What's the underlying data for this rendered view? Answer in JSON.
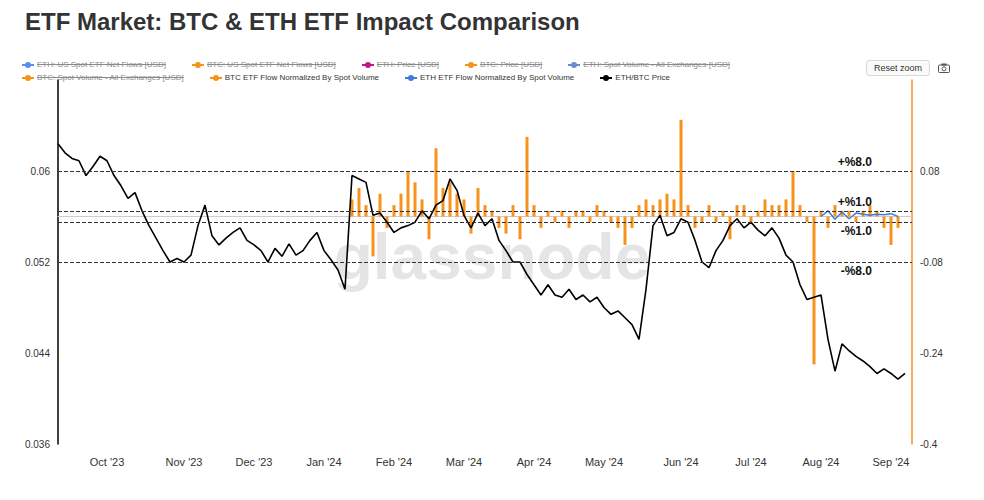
{
  "chart_data": {
    "type": "line",
    "title": "ETF Market: BTC & ETH ETF Impact Comparison",
    "watermark": "glassnode",
    "controls": [
      "Reset zoom"
    ],
    "legend": "top",
    "grid": false,
    "hidden_series": [
      {
        "name": "ETH: US Spot ETF Net Flows [USD]",
        "color": "#5b8def"
      },
      {
        "name": "BTC: US Spot ETF Net Flows [USD]",
        "color": "#f7931a"
      },
      {
        "name": "ETH: Price [USD]",
        "color": "#c0168c"
      },
      {
        "name": "BTC: Price [USD]",
        "color": "#f7931a"
      },
      {
        "name": "ETH: Spot Volume - All Exchanges [USD]",
        "color": "#6b8cce"
      },
      {
        "name": "BTC: Spot Volume - All Exchanges [USD]",
        "color": "#f7931a"
      }
    ],
    "categories": [
      null,
      null,
      null,
      null,
      null,
      null,
      null,
      "Oct '23",
      null,
      null,
      null,
      null,
      null,
      null,
      null,
      null,
      null,
      null,
      "Nov '23",
      null,
      null,
      null,
      null,
      null,
      null,
      null,
      null,
      null,
      "Dec '23",
      null,
      null,
      null,
      null,
      null,
      null,
      null,
      null,
      null,
      "Jan '24",
      null,
      null,
      null,
      null,
      null,
      null,
      null,
      null,
      null,
      "Feb '24",
      null,
      null,
      null,
      null,
      null,
      null,
      null,
      null,
      null,
      "Mar '24",
      null,
      null,
      null,
      null,
      null,
      null,
      null,
      null,
      null,
      "Apr '24",
      null,
      null,
      null,
      null,
      null,
      null,
      null,
      null,
      null,
      "May '24",
      null,
      null,
      null,
      null,
      null,
      null,
      null,
      null,
      null,
      null,
      "Jun '24",
      null,
      null,
      null,
      null,
      null,
      null,
      null,
      null,
      null,
      "Jul '24",
      null,
      null,
      null,
      null,
      null,
      null,
      null,
      null,
      null,
      "Aug '24",
      null,
      null,
      null,
      null,
      null,
      null,
      null,
      null,
      null,
      "Sep '24",
      null,
      null,
      null
    ],
    "ylim": [
      0.036,
      0.068
    ],
    "yticks": [
      0.036,
      0.044,
      0.052,
      0.06
    ],
    "y2lim": [
      -0.4,
      0.24
    ],
    "y2ticks": [
      -0.4,
      -0.24,
      -0.08,
      0.08
    ],
    "reference_lines": [
      {
        "value": 0.08,
        "label": "+%8.0"
      },
      {
        "value": 0.01,
        "label": "+%1.0"
      },
      {
        "value": -0.01,
        "label": "-%1.0"
      },
      {
        "value": -0.08,
        "label": "-%8.0"
      }
    ],
    "series": [
      {
        "name": "BTC ETF Flow Normalized By Spot Volume",
        "type": "bar",
        "color": "#f7931a",
        "axis": "y2",
        "values": [
          null,
          null,
          null,
          null,
          null,
          null,
          null,
          null,
          null,
          null,
          null,
          null,
          null,
          null,
          null,
          null,
          null,
          null,
          null,
          null,
          null,
          null,
          null,
          null,
          null,
          null,
          null,
          null,
          null,
          null,
          null,
          null,
          null,
          null,
          null,
          null,
          null,
          null,
          null,
          null,
          null,
          null,
          0.03,
          0.05,
          0.02,
          -0.07,
          0.04,
          -0.02,
          0.02,
          0.04,
          0.08,
          0.06,
          0.03,
          -0.04,
          0.12,
          0.05,
          0.06,
          0.04,
          0.03,
          -0.03,
          0.05,
          0.02,
          0.01,
          -0.02,
          -0.03,
          0.02,
          -0.04,
          0.14,
          0.02,
          -0.02,
          0.01,
          -0.01,
          0.01,
          -0.02,
          0.01,
          0.01,
          -0.01,
          0.02,
          0.01,
          -0.01,
          -0.02,
          -0.05,
          -0.02,
          0.02,
          0.03,
          0.02,
          0.03,
          0.04,
          0.03,
          0.17,
          0.02,
          -0.02,
          -0.01,
          0.02,
          -0.01,
          0.01,
          -0.04,
          0.02,
          0.02,
          -0.01,
          0.01,
          0.03,
          0.02,
          0.02,
          0.03,
          0.08,
          0.02,
          -0.01,
          -0.26,
          0.01,
          -0.02,
          0.02,
          0.01,
          0.01,
          -0.01,
          0.01,
          0.02,
          0.01,
          -0.02,
          -0.05,
          -0.02,
          null,
          null
        ]
      },
      {
        "name": "ETH ETF Flow Normalized By Spot Volume",
        "type": "line",
        "color": "#3b7ddd",
        "axis": "y2",
        "values": [
          null,
          null,
          null,
          null,
          null,
          null,
          null,
          null,
          null,
          null,
          null,
          null,
          null,
          null,
          null,
          null,
          null,
          null,
          null,
          null,
          null,
          null,
          null,
          null,
          null,
          null,
          null,
          null,
          null,
          null,
          null,
          null,
          null,
          null,
          null,
          null,
          null,
          null,
          null,
          null,
          null,
          null,
          null,
          null,
          null,
          null,
          null,
          null,
          null,
          null,
          null,
          null,
          null,
          null,
          null,
          null,
          null,
          null,
          null,
          null,
          null,
          null,
          null,
          null,
          null,
          null,
          null,
          null,
          null,
          null,
          null,
          null,
          null,
          null,
          null,
          null,
          null,
          null,
          null,
          null,
          null,
          null,
          null,
          null,
          null,
          null,
          null,
          null,
          null,
          null,
          null,
          null,
          null,
          null,
          null,
          null,
          null,
          null,
          null,
          null,
          null,
          null,
          null,
          null,
          null,
          null,
          null,
          null,
          null,
          0,
          0.01,
          -0.005,
          0.008,
          -0.004,
          0.006,
          0.004,
          0.002,
          0.004,
          0.003,
          0.005,
          0,
          null,
          null
        ]
      },
      {
        "name": "ETH/BTC Price",
        "type": "line",
        "color": "#000000",
        "values": [
          0.0624,
          0.0616,
          0.0611,
          0.0609,
          0.0596,
          0.0604,
          0.0613,
          0.0609,
          0.0596,
          0.0587,
          0.0576,
          0.0581,
          0.0565,
          0.0552,
          0.0541,
          0.053,
          0.052,
          0.0523,
          0.052,
          0.0526,
          0.0552,
          0.057,
          0.0543,
          0.0535,
          0.0541,
          0.0546,
          0.055,
          0.0539,
          0.0535,
          0.053,
          0.052,
          0.0532,
          0.0525,
          0.0536,
          0.0526,
          0.053,
          0.0539,
          0.0546,
          0.053,
          0.0522,
          0.0513,
          0.0496,
          0.0596,
          0.0593,
          0.059,
          0.0561,
          0.0563,
          0.0555,
          0.0546,
          0.055,
          0.0552,
          0.0555,
          0.0565,
          0.0558,
          0.057,
          0.0574,
          0.0593,
          0.0583,
          0.0561,
          0.055,
          0.0563,
          0.0552,
          0.0558,
          0.0539,
          0.053,
          0.052,
          0.052,
          0.0509,
          0.05,
          0.0491,
          0.05,
          0.0491,
          0.0489,
          0.0496,
          0.0487,
          0.0491,
          0.0485,
          0.0489,
          0.048,
          0.0474,
          0.0477,
          0.0471,
          0.0465,
          0.0452,
          0.0496,
          0.0552,
          0.0561,
          0.0543,
          0.0546,
          0.0558,
          0.0555,
          0.0539,
          0.052,
          0.0515,
          0.053,
          0.0539,
          0.0552,
          0.0558,
          0.055,
          0.0555,
          0.0548,
          0.0543,
          0.055,
          0.0541,
          0.0526,
          0.052,
          0.05,
          0.0487,
          0.0489,
          0.0491,
          0.0452,
          0.0424,
          0.0448,
          0.0442,
          0.0437,
          0.0433,
          0.0428,
          0.0422,
          0.0426,
          0.0422,
          0.0417,
          0.0422,
          null
        ]
      }
    ]
  }
}
